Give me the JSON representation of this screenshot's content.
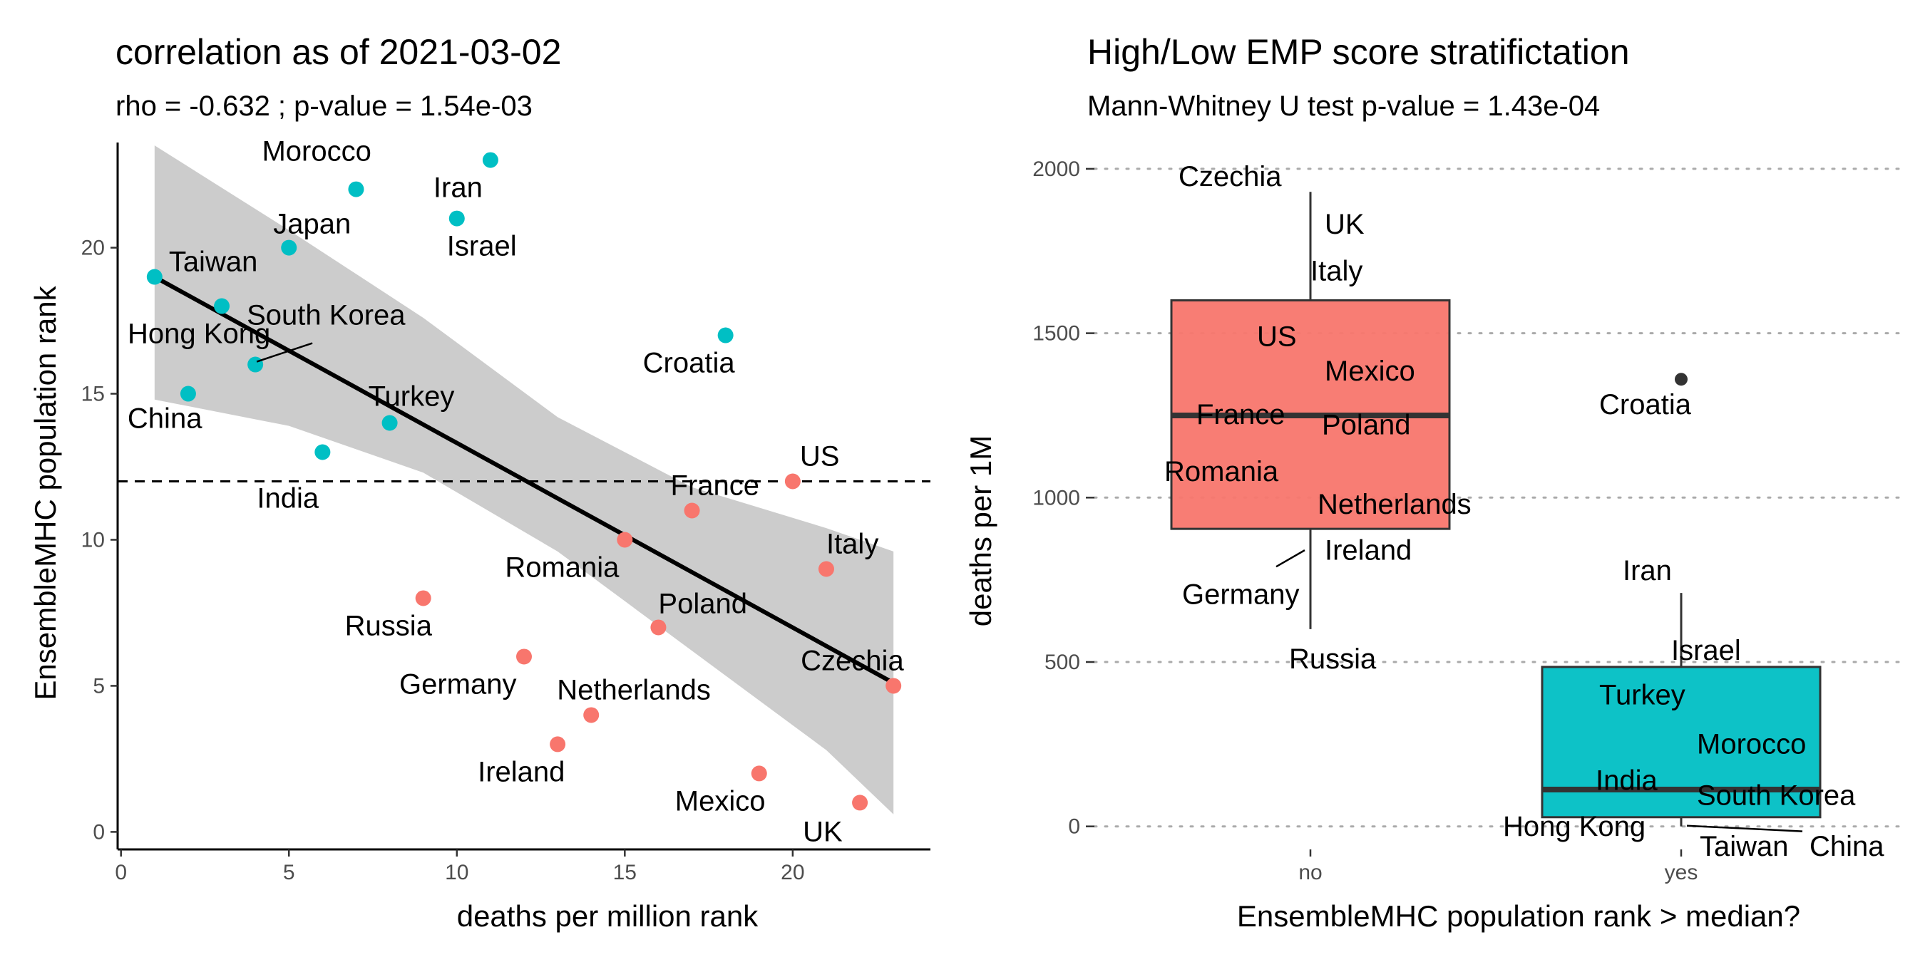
{
  "left_panel": {
    "title": "correlation as of  2021-03-02",
    "subtitle": "rho = -0.632 ; p-value = 1.54e-03"
  },
  "right_panel": {
    "title": "High/Low EMP score stratifictation",
    "subtitle": "Mann-Whitney U test p-value = 1.43e-04"
  },
  "colors": {
    "low": "#F8766D",
    "high": "#00BFC4",
    "ribbon": "#cccccc",
    "line": "#000000"
  },
  "chart_data": [
    {
      "type": "scatter",
      "title": "correlation as of  2021-03-02",
      "subtitle": "rho = -0.632 ; p-value = 1.54e-03",
      "xlabel": "deaths per million rank",
      "ylabel": "EnsembleMHC population rank",
      "xlim": [
        -0.1,
        24.1
      ],
      "ylim": [
        -0.6,
        23.6
      ],
      "x_ticks": [
        "0",
        "5",
        "10",
        "15",
        "20"
      ],
      "y_ticks": [
        "0",
        "5",
        "10",
        "15",
        "20"
      ],
      "hline": 12,
      "grid": false,
      "fit_line": {
        "x": [
          1,
          23
        ],
        "y": [
          19.0,
          5.1
        ]
      },
      "ribbon": {
        "x": [
          1,
          5,
          9,
          13,
          17,
          21,
          23
        ],
        "lower": [
          14.8,
          13.9,
          12.3,
          9.6,
          6.2,
          2.8,
          0.6
        ],
        "upper": [
          23.5,
          20.6,
          17.6,
          14.2,
          11.8,
          10.4,
          9.6
        ]
      },
      "points": [
        {
          "label": "Taiwan",
          "x": 1,
          "y": 19,
          "group": "high"
        },
        {
          "label": "China",
          "x": 2,
          "y": 15,
          "group": "high"
        },
        {
          "label": "Hong Kong",
          "x": 3,
          "y": 18,
          "group": "high"
        },
        {
          "label": "South Korea",
          "x": 4,
          "y": 16,
          "group": "high"
        },
        {
          "label": "Japan",
          "x": 5,
          "y": 20,
          "group": "high"
        },
        {
          "label": "India",
          "x": 6,
          "y": 13,
          "group": "high"
        },
        {
          "label": "Morocco",
          "x": 7,
          "y": 22,
          "group": "high"
        },
        {
          "label": "Turkey",
          "x": 8,
          "y": 14,
          "group": "high"
        },
        {
          "label": "Russia",
          "x": 9,
          "y": 8,
          "group": "low"
        },
        {
          "label": "Israel",
          "x": 10,
          "y": 21,
          "group": "high"
        },
        {
          "label": "Iran",
          "x": 11,
          "y": 23,
          "group": "high"
        },
        {
          "label": "Germany",
          "x": 12,
          "y": 6,
          "group": "low"
        },
        {
          "label": "Ireland",
          "x": 13,
          "y": 3,
          "group": "low"
        },
        {
          "label": "Netherlands",
          "x": 14,
          "y": 4,
          "group": "low"
        },
        {
          "label": "Romania",
          "x": 15,
          "y": 10,
          "group": "low"
        },
        {
          "label": "Poland",
          "x": 16,
          "y": 7,
          "group": "low"
        },
        {
          "label": "France",
          "x": 17,
          "y": 11,
          "group": "low"
        },
        {
          "label": "Croatia",
          "x": 18,
          "y": 17,
          "group": "high"
        },
        {
          "label": "Mexico",
          "x": 19,
          "y": 2,
          "group": "low"
        },
        {
          "label": "US",
          "x": 20,
          "y": 12,
          "group": "low"
        },
        {
          "label": "Italy",
          "x": 21,
          "y": 9,
          "group": "low"
        },
        {
          "label": "UK",
          "x": 22,
          "y": 1,
          "group": "low"
        },
        {
          "label": "Czechia",
          "x": 23,
          "y": 5,
          "group": "low"
        }
      ]
    },
    {
      "type": "box",
      "title": "High/Low EMP score stratifictation",
      "subtitle": "Mann-Whitney U test p-value = 1.43e-04",
      "xlabel": "EnsembleMHC population rank > median?",
      "ylabel": "deaths per 1M",
      "ylim": [
        -70,
        2080
      ],
      "y_ticks": [
        "0",
        "500",
        "1000",
        "1500",
        "2000"
      ],
      "categories": [
        "no",
        "yes"
      ],
      "grid": "horizontal-dotted",
      "boxes": [
        {
          "category": "no",
          "group": "low",
          "whisker_low": 600,
          "q1": 905,
          "median": 1250,
          "q3": 1600,
          "whisker_high": 1930,
          "outliers": []
        },
        {
          "category": "yes",
          "group": "high",
          "whisker_low": 0,
          "q1": 28,
          "median": 112,
          "q3": 485,
          "whisker_high": 710,
          "outliers": [
            1360
          ]
        }
      ],
      "labels": [
        {
          "label": "Czechia",
          "category": "no",
          "y": 1930
        },
        {
          "label": "UK",
          "category": "no",
          "y": 1850
        },
        {
          "label": "Italy",
          "category": "no",
          "y": 1700
        },
        {
          "label": "US",
          "category": "no",
          "y": 1505
        },
        {
          "label": "Mexico",
          "category": "no",
          "y": 1395
        },
        {
          "label": "France",
          "category": "no",
          "y": 1250
        },
        {
          "label": "Poland",
          "category": "no",
          "y": 1240
        },
        {
          "label": "Romania",
          "category": "no",
          "y": 1090
        },
        {
          "label": "Netherlands",
          "category": "no",
          "y": 990
        },
        {
          "label": "Ireland",
          "category": "no",
          "y": 850
        },
        {
          "label": "Germany",
          "category": "no",
          "y": 720
        },
        {
          "label": "Russia",
          "category": "no",
          "y": 520
        },
        {
          "label": "Iran",
          "category": "yes",
          "y": 775
        },
        {
          "label": "Croatia",
          "category": "yes",
          "y": 1280
        },
        {
          "label": "Israel",
          "category": "yes",
          "y": 545
        },
        {
          "label": "Turkey",
          "category": "yes",
          "y": 410
        },
        {
          "label": "Morocco",
          "category": "yes",
          "y": 260
        },
        {
          "label": "India",
          "category": "yes",
          "y": 150
        },
        {
          "label": "South Korea",
          "category": "yes",
          "y": 105
        },
        {
          "label": "Hong Kong",
          "category": "yes",
          "y": 15
        },
        {
          "label": "Taiwan",
          "category": "yes",
          "y": -25
        },
        {
          "label": "China",
          "category": "yes",
          "y": -25
        }
      ]
    }
  ]
}
